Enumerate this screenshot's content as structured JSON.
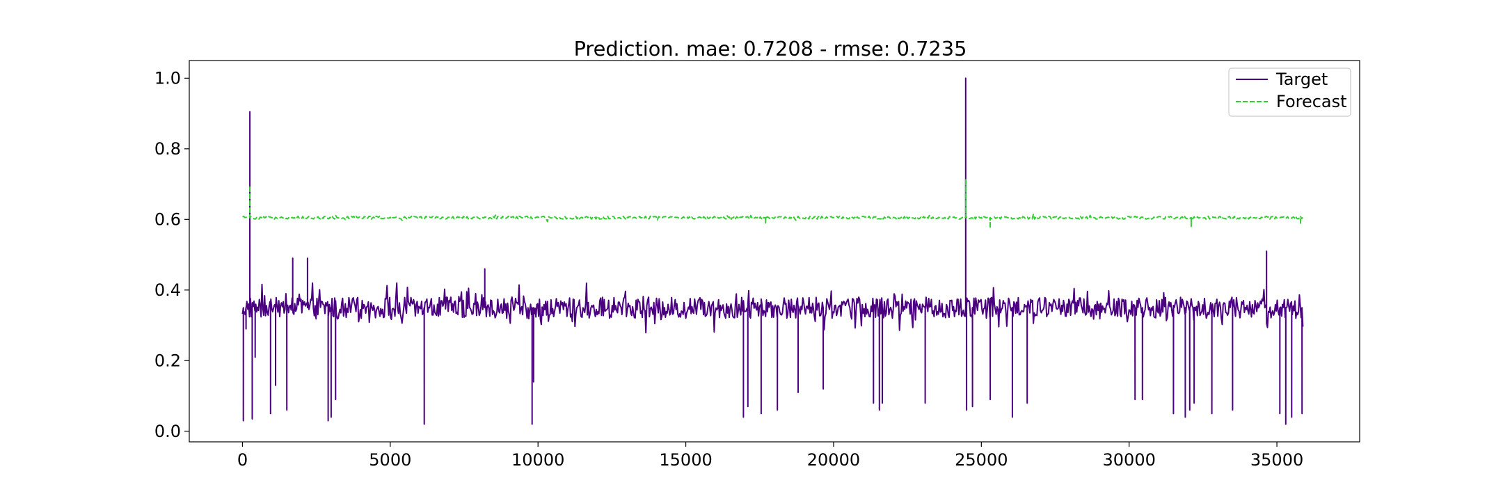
{
  "chart_data": {
    "type": "line",
    "title": "Prediction. mae: 0.7208 - rmse: 0.7235",
    "xlabel": "",
    "ylabel": "",
    "xlim": [
      -1800,
      37800
    ],
    "ylim": [
      -0.03,
      1.05
    ],
    "x_ticks": [
      0,
      5000,
      10000,
      15000,
      20000,
      25000,
      30000,
      35000
    ],
    "x_tick_labels": [
      "0",
      "5000",
      "10000",
      "15000",
      "20000",
      "25000",
      "30000",
      "35000"
    ],
    "y_ticks": [
      0.0,
      0.2,
      0.4,
      0.6,
      0.8,
      1.0
    ],
    "y_tick_labels": [
      "0.0",
      "0.2",
      "0.4",
      "0.6",
      "0.8",
      "1.0"
    ],
    "grid": false,
    "legend_position": "top-right",
    "colors": {
      "target": "#4b0082",
      "forecast": "#32cd32"
    },
    "series": [
      {
        "name": "Target",
        "style": "solid",
        "baseline": 0.35,
        "band": [
          0.29,
          0.4
        ],
        "x_end": 35900,
        "spikes": [
          {
            "x": 30,
            "y": 0.03
          },
          {
            "x": 120,
            "y": 0.29
          },
          {
            "x": 250,
            "y": 0.905
          },
          {
            "x": 330,
            "y": 0.035
          },
          {
            "x": 430,
            "y": 0.21
          },
          {
            "x": 950,
            "y": 0.05
          },
          {
            "x": 1120,
            "y": 0.13
          },
          {
            "x": 1500,
            "y": 0.06
          },
          {
            "x": 1700,
            "y": 0.49
          },
          {
            "x": 2200,
            "y": 0.49
          },
          {
            "x": 2900,
            "y": 0.03
          },
          {
            "x": 3000,
            "y": 0.04
          },
          {
            "x": 3150,
            "y": 0.09
          },
          {
            "x": 6150,
            "y": 0.02
          },
          {
            "x": 8200,
            "y": 0.46
          },
          {
            "x": 9800,
            "y": 0.02
          },
          {
            "x": 9850,
            "y": 0.14
          },
          {
            "x": 16950,
            "y": 0.04
          },
          {
            "x": 17100,
            "y": 0.07
          },
          {
            "x": 17550,
            "y": 0.05
          },
          {
            "x": 18100,
            "y": 0.06
          },
          {
            "x": 18800,
            "y": 0.11
          },
          {
            "x": 19650,
            "y": 0.12
          },
          {
            "x": 21350,
            "y": 0.08
          },
          {
            "x": 21550,
            "y": 0.06
          },
          {
            "x": 21650,
            "y": 0.08
          },
          {
            "x": 23100,
            "y": 0.08
          },
          {
            "x": 24470,
            "y": 1.0
          },
          {
            "x": 24500,
            "y": 0.06
          },
          {
            "x": 24700,
            "y": 0.07
          },
          {
            "x": 25300,
            "y": 0.09
          },
          {
            "x": 26050,
            "y": 0.04
          },
          {
            "x": 26550,
            "y": 0.08
          },
          {
            "x": 30200,
            "y": 0.09
          },
          {
            "x": 30450,
            "y": 0.09
          },
          {
            "x": 31500,
            "y": 0.05
          },
          {
            "x": 31900,
            "y": 0.04
          },
          {
            "x": 32050,
            "y": 0.06
          },
          {
            "x": 32200,
            "y": 0.08
          },
          {
            "x": 32800,
            "y": 0.05
          },
          {
            "x": 33500,
            "y": 0.06
          },
          {
            "x": 34650,
            "y": 0.51
          },
          {
            "x": 35100,
            "y": 0.05
          },
          {
            "x": 35300,
            "y": 0.02
          },
          {
            "x": 35500,
            "y": 0.04
          },
          {
            "x": 35850,
            "y": 0.05
          }
        ]
      },
      {
        "name": "Forecast",
        "style": "dashed",
        "baseline": 0.605,
        "band": [
          0.585,
          0.615
        ],
        "x_end": 35900,
        "spikes": [
          {
            "x": 250,
            "y": 0.695
          },
          {
            "x": 24470,
            "y": 0.715
          },
          {
            "x": 25300,
            "y": 0.575
          },
          {
            "x": 17700,
            "y": 0.59
          },
          {
            "x": 32100,
            "y": 0.58
          },
          {
            "x": 35800,
            "y": 0.585
          }
        ]
      }
    ]
  }
}
